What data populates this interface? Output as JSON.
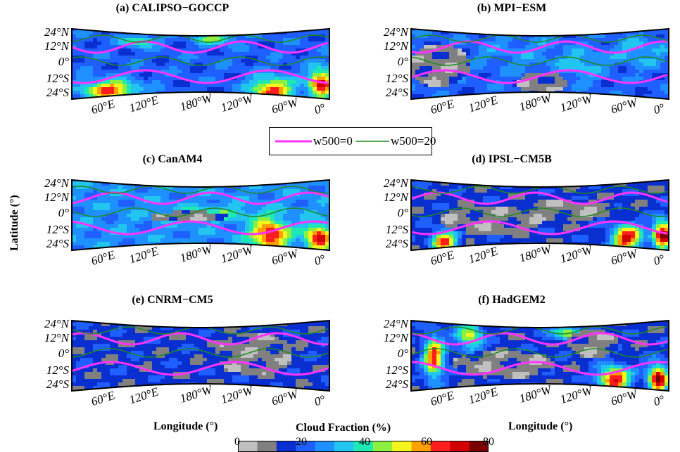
{
  "panels": [
    {
      "title": "(a) CALIPSO−GOCCP",
      "regime": "calipso"
    },
    {
      "title": "(b) MPI−ESM",
      "regime": "mpi"
    },
    {
      "title": "(c) CanAM4",
      "regime": "canam"
    },
    {
      "title": "(d) IPSL−CM5B",
      "regime": "ipsl"
    },
    {
      "title": "(e) CNRM−CM5",
      "regime": "cnrm"
    },
    {
      "title": "(f) HadGEM2",
      "regime": "hadgem"
    }
  ],
  "lat_ticks": [
    "24°N",
    "12°N",
    "0°",
    "12°S",
    "24°S"
  ],
  "lon_ticks": [
    "60°E",
    "120°E",
    "180°W",
    "120°W",
    "60°W",
    "0°"
  ],
  "legend": {
    "item1": "w500=0",
    "item1_color": "#ff33ff",
    "item2": "w500=20",
    "item2_color": "#1f8a1f"
  },
  "axes": {
    "ylabel": "Latitude (°)",
    "xlabel_left": "Longitude (°)",
    "xlabel_right": "Longitude (°)"
  },
  "colorbar": {
    "title": "Cloud Fraction (%)",
    "ticks": [
      "0",
      "20",
      "40",
      "60",
      "80"
    ],
    "colors": [
      "#c0c0c0",
      "#808080",
      "#0a2fd1",
      "#1f5fff",
      "#1e90ff",
      "#22c4f0",
      "#1ee8b4",
      "#8cf040",
      "#f5f51e",
      "#ffa000",
      "#ff1e1e",
      "#d20000",
      "#7a0000"
    ]
  }
}
